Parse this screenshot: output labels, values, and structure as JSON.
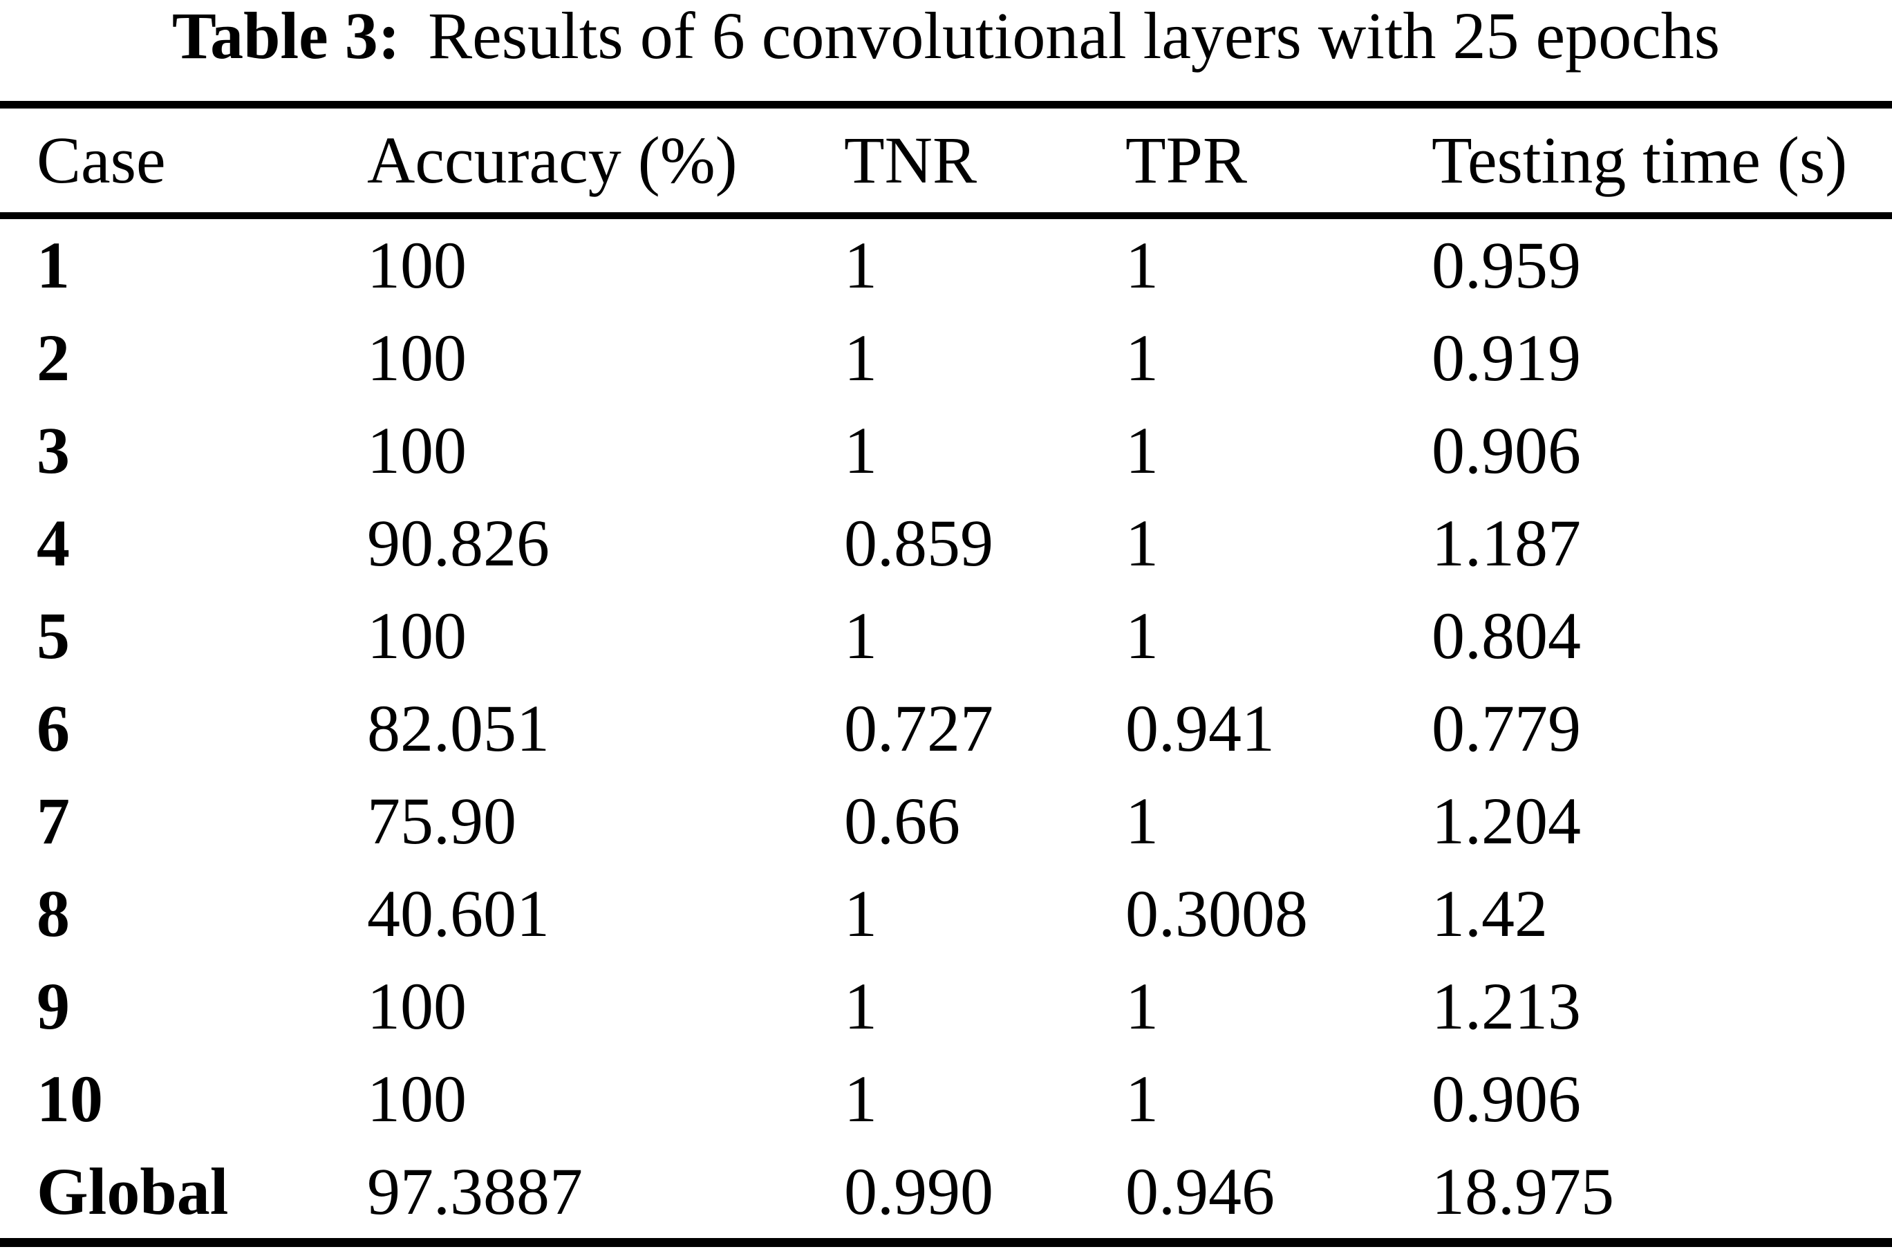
{
  "caption": {
    "label": "Table 3:",
    "text": "Results of 6 convolutional layers with 25 epochs"
  },
  "chart_data": {
    "type": "table",
    "title": "Table 3: Results of 6 convolutional layers with 25 epochs",
    "columns": [
      "Case",
      "Accuracy (%)",
      "TNR",
      "TPR",
      "Testing time (s)"
    ],
    "rows": [
      [
        "1",
        "100",
        "1",
        "1",
        "0.959"
      ],
      [
        "2",
        "100",
        "1",
        "1",
        "0.919"
      ],
      [
        "3",
        "100",
        "1",
        "1",
        "0.906"
      ],
      [
        "4",
        "90.826",
        "0.859",
        "1",
        "1.187"
      ],
      [
        "5",
        "100",
        "1",
        "1",
        "0.804"
      ],
      [
        "6",
        "82.051",
        "0.727",
        "0.941",
        "0.779"
      ],
      [
        "7",
        "75.90",
        "0.66",
        "1",
        "1.204"
      ],
      [
        "8",
        "40.601",
        "1",
        "0.3008",
        "1.42"
      ],
      [
        "9",
        "100",
        "1",
        "1",
        "1.213"
      ],
      [
        "10",
        "100",
        "1",
        "1",
        "0.906"
      ],
      [
        "Global",
        "97.3887",
        "0.990",
        "0.946",
        "18.975"
      ]
    ]
  },
  "colors": {
    "background": "#ffffff",
    "text": "#000000",
    "rule": "#000000"
  }
}
